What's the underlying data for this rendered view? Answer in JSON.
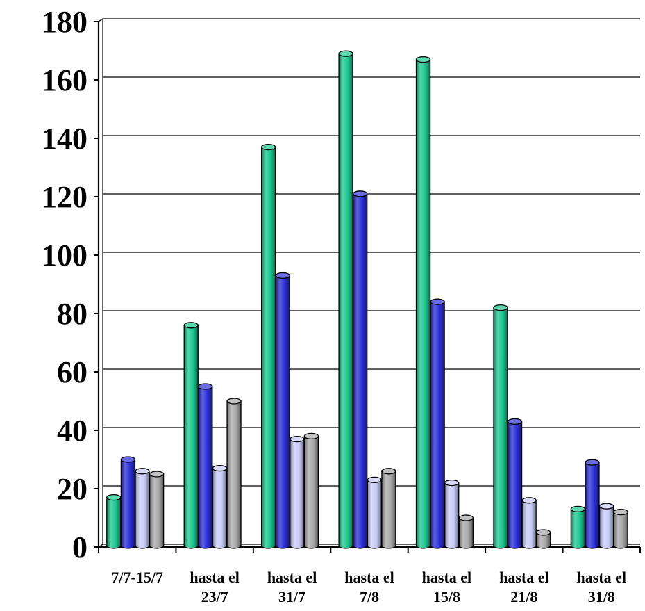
{
  "chart_data": {
    "type": "bar",
    "title": "",
    "xlabel": "",
    "ylabel": "",
    "ylim": [
      0,
      180
    ],
    "yticks": [
      "0",
      "20",
      "40",
      "60",
      "80",
      "100",
      "120",
      "140",
      "160",
      "180"
    ],
    "grid": true,
    "legend": "none",
    "categories": [
      [
        "7/7-15/7"
      ],
      [
        "hasta el",
        "23/7"
      ],
      [
        "hasta el",
        "31/7"
      ],
      [
        "hasta el",
        "7/8"
      ],
      [
        "hasta el",
        "15/8"
      ],
      [
        "hasta el",
        "21/8"
      ],
      [
        "hasta el",
        "31/8"
      ]
    ],
    "series": [
      {
        "color": "#19c78f",
        "values": [
          17,
          76,
          137,
          169,
          167,
          82,
          13
        ]
      },
      {
        "color": "#2a2ed6",
        "values": [
          30,
          55,
          93,
          121,
          84,
          43,
          29
        ]
      },
      {
        "color": "#c9ccf7",
        "values": [
          26,
          27,
          37,
          23,
          22,
          16,
          14
        ]
      },
      {
        "color": "#a9a9a9",
        "values": [
          25,
          50,
          38,
          26,
          10,
          5,
          12
        ]
      }
    ]
  }
}
